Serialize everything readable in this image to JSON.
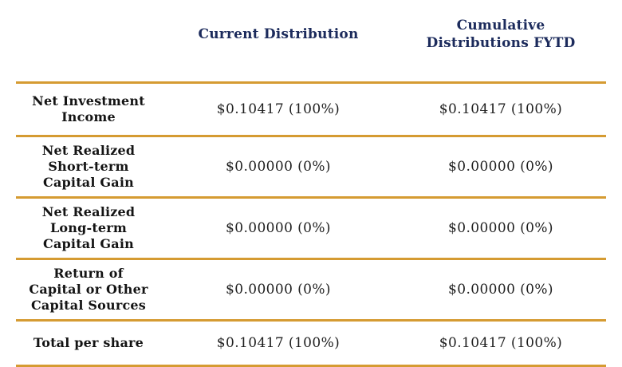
{
  "colors": {
    "rule_gold": "#D59B32",
    "header_navy": "#1C2B5C",
    "label_black": "#141414",
    "value_black": "#1E1E1E",
    "background": "#FFFFFF"
  },
  "table": {
    "column_headers": {
      "label_column": "",
      "current": "Current Distribution",
      "cumulative": "Cumulative\nDistributions FYTD"
    },
    "rows": [
      {
        "label": "Net Investment\nIncome",
        "current": "$0.10417 (100%)",
        "cumulative": "$0.10417 (100%)"
      },
      {
        "label": "Net Realized\nShort-term\nCapital Gain",
        "current": "$0.00000 (0%)",
        "cumulative": "$0.00000 (0%)"
      },
      {
        "label": "Net Realized\nLong-term\nCapital Gain",
        "current": "$0.00000 (0%)",
        "cumulative": "$0.00000 (0%)"
      },
      {
        "label": "Return of\nCapital or Other\nCapital Sources",
        "current": "$0.00000 (0%)",
        "cumulative": "$0.00000 (0%)"
      },
      {
        "label": "Total per share",
        "current": "$0.10417 (100%)",
        "cumulative": "$0.10417 (100%)"
      }
    ]
  }
}
